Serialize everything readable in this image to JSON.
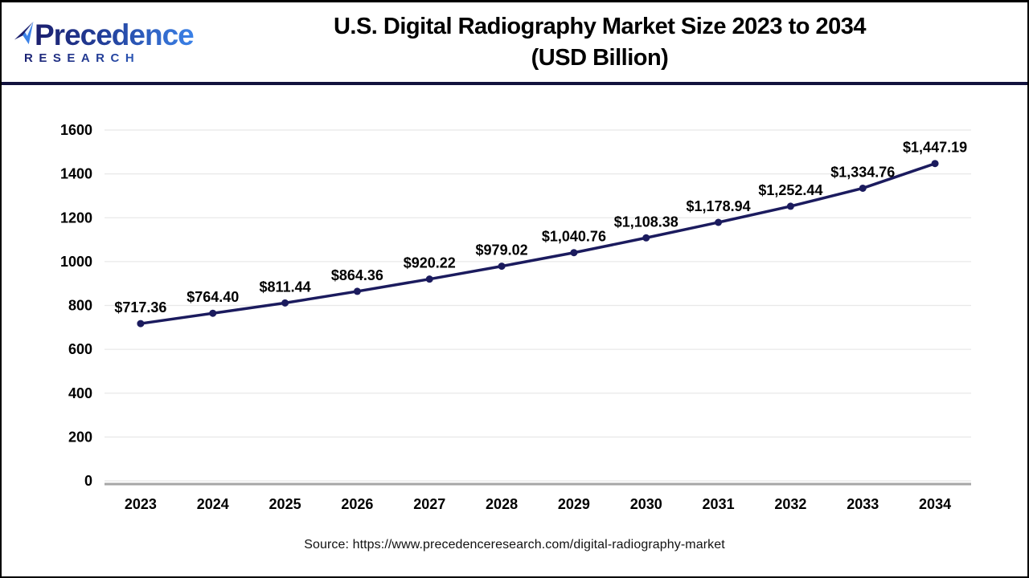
{
  "header": {
    "logo": {
      "line1": "Precedence",
      "line2": "RESEARCH",
      "icon": "sail-icon"
    },
    "title_line1": "U.S. Digital Radiography Market Size 2023 to 2034",
    "title_line2": "(USD Billion)"
  },
  "footer": {
    "source": "Source: https://www.precedenceresearch.com/digital-radiography-market"
  },
  "colors": {
    "line": "#1b1b5e",
    "marker": "#1b1b5e",
    "gridline": "#e8e8e8",
    "axis_line": "#a6a6a6",
    "label_text": "#000000",
    "separator": "#12123d",
    "logo_navy": "#1b1f6e",
    "logo_blue": "#3b82e8"
  },
  "chart_data": {
    "type": "line",
    "title": "U.S. Digital Radiography Market Size 2023 to 2034 (USD Billion)",
    "xlabel": "",
    "ylabel": "",
    "categories": [
      "2023",
      "2024",
      "2025",
      "2026",
      "2027",
      "2028",
      "2029",
      "2030",
      "2031",
      "2032",
      "2033",
      "2034"
    ],
    "values": [
      717.36,
      764.4,
      811.44,
      864.36,
      920.22,
      979.02,
      1040.76,
      1108.38,
      1178.94,
      1252.44,
      1334.76,
      1447.19
    ],
    "point_labels": [
      "$717.36",
      "$764.40",
      "$811.44",
      "$864.36",
      "$920.22",
      "$979.02",
      "$1,040.76",
      "$1,108.38",
      "$1,178.94",
      "$1,252.44",
      "$1,334.76",
      "$1,447.19"
    ],
    "ylim": [
      0,
      1600
    ],
    "yticks": [
      0,
      200,
      400,
      600,
      800,
      1000,
      1200,
      1400,
      1600
    ],
    "grid": true,
    "legend": false,
    "units": "USD Billion"
  }
}
